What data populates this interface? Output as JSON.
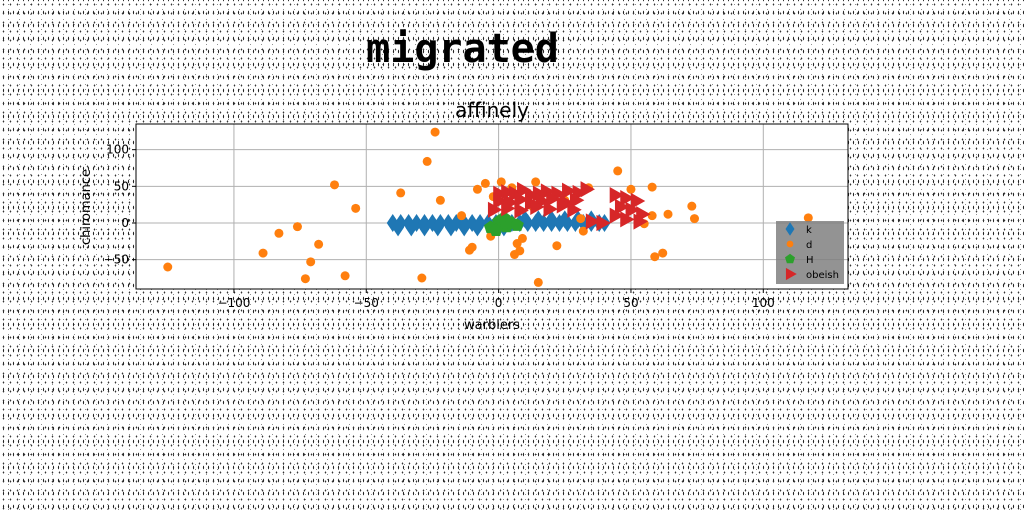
{
  "page": {
    "title": "migrated"
  },
  "chart_data": {
    "type": "scatter",
    "title": "affinely",
    "xlabel": "warblers",
    "ylabel": "chiromance",
    "xlim": [
      -137,
      132
    ],
    "ylim": [
      -90,
      135
    ],
    "xticks": [
      -100,
      -50,
      0,
      50,
      100
    ],
    "yticks": [
      -50,
      0,
      50,
      100
    ],
    "grid": true,
    "legend_position": "lower-right",
    "series": [
      {
        "name": "k",
        "marker": "thin_diamond",
        "color": "#1f77b4",
        "points": [
          [
            -40,
            0
          ],
          [
            -37,
            0
          ],
          [
            -34,
            0
          ],
          [
            -31,
            0
          ],
          [
            -28,
            0
          ],
          [
            -25,
            0
          ],
          [
            -22,
            0
          ],
          [
            -19,
            0
          ],
          [
            -16,
            0
          ],
          [
            -13,
            0
          ],
          [
            -10,
            0
          ],
          [
            -7,
            0
          ],
          [
            -4,
            0
          ],
          [
            -1,
            0
          ],
          [
            2,
            0
          ],
          [
            5,
            0
          ],
          [
            8,
            0
          ],
          [
            11,
            0
          ],
          [
            14,
            0
          ],
          [
            17,
            0
          ],
          [
            20,
            0
          ],
          [
            23,
            0
          ],
          [
            26,
            0
          ],
          [
            29,
            0
          ],
          [
            32,
            0
          ],
          [
            35,
            0
          ],
          [
            38,
            0
          ],
          [
            40,
            0
          ],
          [
            -38,
            -6
          ],
          [
            -33,
            -6
          ],
          [
            -28,
            -6
          ],
          [
            -23,
            -6
          ],
          [
            -18,
            -6
          ],
          [
            -13,
            -6
          ],
          [
            -8,
            -6
          ],
          [
            -3,
            -6
          ],
          [
            2,
            -6
          ],
          [
            10,
            5
          ],
          [
            15,
            5
          ],
          [
            20,
            5
          ],
          [
            25,
            5
          ],
          [
            30,
            5
          ],
          [
            35,
            5
          ]
        ]
      },
      {
        "name": "d",
        "marker": "circle",
        "color": "#ff7f0e",
        "points": [
          [
            -125,
            -60
          ],
          [
            -89,
            -41
          ],
          [
            -83,
            -14
          ],
          [
            -76,
            -5
          ],
          [
            -73,
            -76
          ],
          [
            -71,
            -53
          ],
          [
            -68,
            -29
          ],
          [
            -58,
            -72
          ],
          [
            -62,
            52
          ],
          [
            -54,
            20
          ],
          [
            -37,
            41
          ],
          [
            -29,
            -75
          ],
          [
            -27,
            84
          ],
          [
            -24,
            124
          ],
          [
            -22,
            31
          ],
          [
            -14,
            10
          ],
          [
            -11,
            -37
          ],
          [
            -10,
            -33
          ],
          [
            -8,
            46
          ],
          [
            -5,
            54
          ],
          [
            -3,
            -18
          ],
          [
            -2,
            36
          ],
          [
            1,
            56
          ],
          [
            2,
            7
          ],
          [
            5,
            48
          ],
          [
            6,
            -43
          ],
          [
            7,
            -28
          ],
          [
            8,
            -38
          ],
          [
            9,
            -21
          ],
          [
            13,
            22
          ],
          [
            14,
            56
          ],
          [
            15,
            -81
          ],
          [
            22,
            -31
          ],
          [
            25,
            31
          ],
          [
            31,
            6
          ],
          [
            32,
            -11
          ],
          [
            34,
            48
          ],
          [
            45,
            71
          ],
          [
            50,
            46
          ],
          [
            55,
            -1
          ],
          [
            58,
            10
          ],
          [
            59,
            -46
          ],
          [
            62,
            -41
          ],
          [
            64,
            12
          ],
          [
            58,
            49
          ],
          [
            73,
            23
          ],
          [
            74,
            6
          ],
          [
            117,
            7
          ]
        ]
      },
      {
        "name": "H",
        "marker": "pentagon",
        "color": "#2ca02c",
        "points": [
          [
            -3,
            -6
          ],
          [
            0,
            2
          ],
          [
            3,
            -5
          ],
          [
            2,
            7
          ],
          [
            5,
            0
          ],
          [
            -1,
            -10
          ],
          [
            7,
            -3
          ]
        ]
      },
      {
        "name": "obeish",
        "marker": "triangle_right",
        "color": "#d62728",
        "points": [
          [
            0,
            40
          ],
          [
            3,
            42
          ],
          [
            6,
            40
          ],
          [
            9,
            45
          ],
          [
            12,
            38
          ],
          [
            15,
            40
          ],
          [
            18,
            43
          ],
          [
            22,
            40
          ],
          [
            26,
            44
          ],
          [
            30,
            41
          ],
          [
            33,
            46
          ],
          [
            0,
            30
          ],
          [
            4,
            28
          ],
          [
            8,
            32
          ],
          [
            12,
            27
          ],
          [
            16,
            30
          ],
          [
            20,
            33
          ],
          [
            25,
            28
          ],
          [
            29,
            31
          ],
          [
            -2,
            18
          ],
          [
            3,
            20
          ],
          [
            8,
            17
          ],
          [
            14,
            22
          ],
          [
            19,
            19
          ],
          [
            24,
            24
          ],
          [
            28,
            18
          ],
          [
            44,
            38
          ],
          [
            48,
            34
          ],
          [
            52,
            30
          ],
          [
            46,
            22
          ],
          [
            50,
            18
          ],
          [
            54,
            12
          ],
          [
            44,
            10
          ],
          [
            48,
            5
          ],
          [
            53,
            2
          ],
          [
            35,
            2
          ],
          [
            39,
            0
          ]
        ]
      }
    ]
  },
  "legend": {
    "title": "",
    "entries": [
      {
        "label": "k",
        "color": "#1f77b4",
        "marker": "thin_diamond"
      },
      {
        "label": "d",
        "color": "#ff7f0e",
        "marker": "circle"
      },
      {
        "label": "H",
        "color": "#2ca02c",
        "marker": "pentagon"
      },
      {
        "label": "obeish",
        "color": "#d62728",
        "marker": "triangle_right"
      }
    ]
  }
}
